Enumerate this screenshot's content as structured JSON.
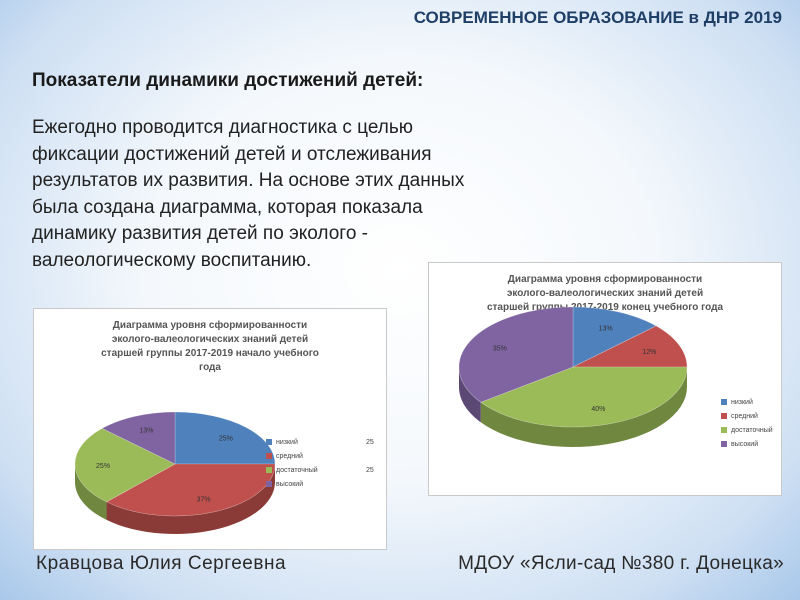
{
  "header": {
    "text": "СОВРЕМЕННОЕ ОБРАЗОВАНИЕ в ДНР 2019"
  },
  "title": "Показатели  динамики  достижений детей:",
  "description": "Ежегодно проводится диагностика с целью фиксации достижений детей и отслеживания результатов их развития. На основе этих данных была создана диаграмма, которая показала динамику развития детей по эколого - валеологическому воспитанию.",
  "footer": {
    "author": "Кравцова Юлия Сергеевна",
    "org": "МДОУ «Ясли-сад №380 г. Донецка»"
  },
  "chart_data": [
    {
      "type": "pie",
      "title_lines": [
        "Диаграмма уровня сформированности",
        "эколого-валеологических знаний детей",
        "старшей группы 2017-2019 начало учебного",
        "года"
      ],
      "categories": [
        "низкий",
        "средний",
        "достаточный",
        "высокий"
      ],
      "values": [
        25,
        37,
        25,
        13
      ],
      "labels": [
        "25%",
        "37%",
        "25%",
        "13%"
      ],
      "legend_values": [
        "25",
        "",
        "25",
        ""
      ],
      "colors": [
        "#4f81bd",
        "#c0504d",
        "#9bbb59",
        "#8064a2"
      ],
      "legend": "right"
    },
    {
      "type": "pie",
      "title_lines": [
        "Диаграмма уровня сформированности",
        "эколого-валеологических знаний детей",
        "старшей группы 2017-2019 конец учебного года"
      ],
      "categories": [
        "низкий",
        "средний",
        "достаточный",
        "высокий"
      ],
      "values": [
        13,
        12,
        40,
        35
      ],
      "labels": [
        "13%",
        "12%",
        "40%",
        "35%"
      ],
      "legend_values": [
        "",
        "",
        "",
        ""
      ],
      "colors": [
        "#4f81bd",
        "#c0504d",
        "#9bbb59",
        "#8064a2"
      ],
      "legend": "right"
    }
  ]
}
